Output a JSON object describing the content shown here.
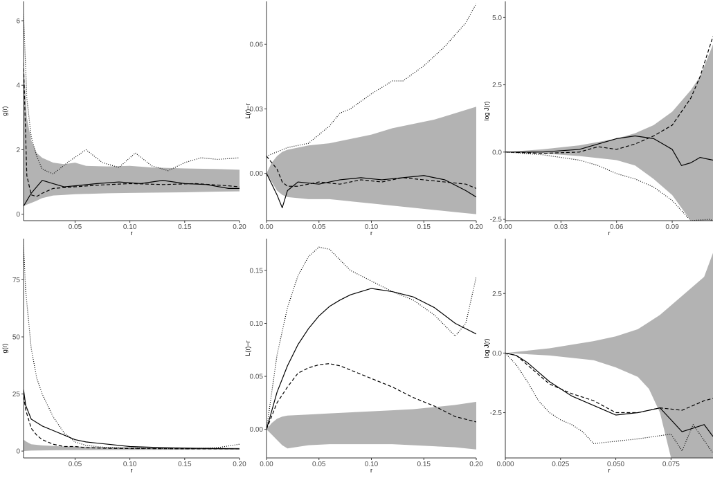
{
  "colors": {
    "envelope": "#b3b3b3",
    "line": "#000000",
    "axis": "#333333",
    "tick_text": "#4d4d4d"
  },
  "chart_data": [
    {
      "type": "line",
      "panel": "row1-col1",
      "xlabel": "r",
      "ylabel": "g(r)",
      "xlim": [
        0.003,
        0.2
      ],
      "ylim": [
        -0.2,
        6.6
      ],
      "xticks": [
        0.05,
        0.1,
        0.15,
        0.2
      ],
      "xtick_labels": [
        "0.05",
        "0.10",
        "0.15",
        "0.20"
      ],
      "yticks": [
        0,
        2,
        4,
        6
      ],
      "ytick_labels": [
        "0",
        "2",
        "4",
        "6"
      ],
      "envelope": {
        "x": [
          0.003,
          0.006,
          0.01,
          0.015,
          0.02,
          0.03,
          0.04,
          0.05,
          0.06,
          0.08,
          0.1,
          0.12,
          0.15,
          0.18,
          0.2
        ],
        "lower": [
          0.25,
          0.3,
          0.35,
          0.42,
          0.5,
          0.58,
          0.6,
          0.62,
          0.63,
          0.65,
          0.66,
          0.67,
          0.68,
          0.7,
          0.71
        ],
        "upper": [
          4.7,
          3.0,
          2.3,
          1.9,
          1.75,
          1.6,
          1.55,
          1.6,
          1.5,
          1.48,
          1.5,
          1.45,
          1.42,
          1.4,
          1.38
        ]
      },
      "series": [
        {
          "style": "solid",
          "x": [
            0.003,
            0.01,
            0.02,
            0.03,
            0.04,
            0.05,
            0.07,
            0.09,
            0.11,
            0.13,
            0.15,
            0.17,
            0.19,
            0.2
          ],
          "y": [
            0.25,
            0.65,
            1.05,
            0.95,
            0.85,
            0.88,
            0.95,
            1.0,
            0.95,
            1.05,
            0.95,
            0.92,
            0.8,
            0.8
          ]
        },
        {
          "style": "dashed",
          "x": [
            0.003,
            0.006,
            0.01,
            0.015,
            0.02,
            0.03,
            0.05,
            0.07,
            0.1,
            0.13,
            0.16,
            0.19,
            0.2
          ],
          "y": [
            4.7,
            1.2,
            0.6,
            0.55,
            0.65,
            0.8,
            0.85,
            0.9,
            0.95,
            0.92,
            0.95,
            0.88,
            0.85
          ]
        },
        {
          "style": "dotted",
          "x": [
            0.003,
            0.006,
            0.01,
            0.015,
            0.02,
            0.03,
            0.045,
            0.06,
            0.075,
            0.09,
            0.105,
            0.12,
            0.135,
            0.15,
            0.165,
            0.18,
            0.2
          ],
          "y": [
            6.2,
            3.6,
            2.4,
            1.8,
            1.4,
            1.25,
            1.65,
            2.0,
            1.6,
            1.45,
            1.9,
            1.5,
            1.35,
            1.6,
            1.75,
            1.7,
            1.75
          ]
        }
      ]
    },
    {
      "type": "line",
      "panel": "row1-col2",
      "xlabel": "r",
      "ylabel": "L(r)−r",
      "xlim": [
        0,
        0.2
      ],
      "ylim": [
        -0.022,
        0.08
      ],
      "xticks": [
        0,
        0.05,
        0.1,
        0.15,
        0.2
      ],
      "xtick_labels": [
        "0.00",
        "0.05",
        "0.10",
        "0.15",
        "0.20"
      ],
      "yticks": [
        0,
        0.03,
        0.06
      ],
      "ytick_labels": [
        "0.00",
        "0.03",
        "0.06"
      ],
      "envelope": {
        "x": [
          0,
          0.005,
          0.01,
          0.015,
          0.02,
          0.04,
          0.06,
          0.08,
          0.1,
          0.12,
          0.14,
          0.16,
          0.18,
          0.2
        ],
        "lower": [
          0,
          -0.004,
          -0.008,
          -0.01,
          -0.011,
          -0.012,
          -0.012,
          -0.013,
          -0.014,
          -0.015,
          -0.016,
          -0.017,
          -0.018,
          -0.019
        ],
        "upper": [
          0,
          0.005,
          0.008,
          0.01,
          0.011,
          0.013,
          0.014,
          0.016,
          0.018,
          0.021,
          0.023,
          0.025,
          0.028,
          0.031
        ]
      },
      "series": [
        {
          "style": "solid",
          "x": [
            0,
            0.005,
            0.01,
            0.015,
            0.02,
            0.03,
            0.05,
            0.07,
            0.09,
            0.11,
            0.13,
            0.15,
            0.17,
            0.19,
            0.2
          ],
          "y": [
            0.0,
            -0.005,
            -0.01,
            -0.016,
            -0.008,
            -0.004,
            -0.005,
            -0.003,
            -0.002,
            -0.003,
            -0.002,
            -0.001,
            -0.003,
            -0.008,
            -0.011
          ]
        },
        {
          "style": "dashed",
          "x": [
            0,
            0.005,
            0.01,
            0.015,
            0.02,
            0.03,
            0.05,
            0.07,
            0.09,
            0.11,
            0.13,
            0.15,
            0.17,
            0.19,
            0.2
          ],
          "y": [
            0.008,
            0.005,
            0.002,
            -0.004,
            -0.006,
            -0.006,
            -0.004,
            -0.005,
            -0.003,
            -0.004,
            -0.002,
            -0.003,
            -0.004,
            -0.005,
            -0.007
          ]
        },
        {
          "style": "dotted",
          "x": [
            0,
            0.01,
            0.02,
            0.04,
            0.06,
            0.07,
            0.08,
            0.1,
            0.12,
            0.13,
            0.15,
            0.17,
            0.19,
            0.2
          ],
          "y": [
            0.008,
            0.01,
            0.012,
            0.014,
            0.022,
            0.028,
            0.03,
            0.037,
            0.043,
            0.043,
            0.05,
            0.059,
            0.07,
            0.079
          ]
        }
      ]
    },
    {
      "type": "line",
      "panel": "row1-col3",
      "xlabel": "r",
      "ylabel": "log J(r)",
      "xlim": [
        0,
        0.112
      ],
      "ylim": [
        -2.55,
        5.6
      ],
      "xticks": [
        0,
        0.03,
        0.06,
        0.09
      ],
      "xtick_labels": [
        "0.00",
        "0.03",
        "0.06",
        "0.09"
      ],
      "yticks": [
        -2.5,
        0,
        2.5,
        5.0
      ],
      "ytick_labels": [
        "-2.5",
        "0.0",
        "2.5",
        "5.0"
      ],
      "envelope": {
        "x": [
          0,
          0.02,
          0.04,
          0.06,
          0.07,
          0.08,
          0.09,
          0.1,
          0.105,
          0.112
        ],
        "lower": [
          0,
          -0.05,
          -0.15,
          -0.3,
          -0.5,
          -1.0,
          -1.6,
          -2.55,
          -2.55,
          -2.55
        ],
        "upper": [
          0,
          0.1,
          0.25,
          0.5,
          0.7,
          1.0,
          1.5,
          2.3,
          2.8,
          4.0
        ]
      },
      "series": [
        {
          "style": "solid",
          "x": [
            0,
            0.02,
            0.04,
            0.05,
            0.06,
            0.07,
            0.08,
            0.085,
            0.09,
            0.095,
            0.1,
            0.105,
            0.112
          ],
          "y": [
            0,
            0.0,
            0.1,
            0.3,
            0.5,
            0.6,
            0.5,
            0.3,
            0.1,
            -0.5,
            -0.4,
            -0.2,
            -0.3
          ]
        },
        {
          "style": "dashed",
          "x": [
            0,
            0.02,
            0.04,
            0.05,
            0.06,
            0.07,
            0.08,
            0.09,
            0.1,
            0.105,
            0.112
          ],
          "y": [
            0,
            -0.05,
            0.0,
            0.2,
            0.1,
            0.3,
            0.6,
            1.0,
            2.0,
            2.8,
            4.3
          ]
        },
        {
          "style": "dotted",
          "x": [
            0,
            0.02,
            0.04,
            0.05,
            0.06,
            0.07,
            0.08,
            0.09,
            0.1,
            0.11,
            0.112
          ],
          "y": [
            0,
            -0.1,
            -0.3,
            -0.5,
            -0.8,
            -1.0,
            -1.3,
            -1.8,
            -2.55,
            -2.5,
            -2.55
          ]
        }
      ]
    },
    {
      "type": "line",
      "panel": "row2-col1",
      "xlabel": "r",
      "ylabel": "g(r)",
      "xlim": [
        0.003,
        0.2
      ],
      "ylim": [
        -3,
        93
      ],
      "xticks": [
        0.05,
        0.1,
        0.15,
        0.2
      ],
      "xtick_labels": [
        "0.05",
        "0.10",
        "0.15",
        "0.20"
      ],
      "yticks": [
        0,
        25,
        50,
        75
      ],
      "ytick_labels": [
        "0",
        "25",
        "50",
        "75"
      ],
      "envelope": {
        "x": [
          0.003,
          0.006,
          0.01,
          0.02,
          0.04,
          0.08,
          0.12,
          0.16,
          0.2
        ],
        "lower": [
          0,
          0.1,
          0.2,
          0.3,
          0.4,
          0.5,
          0.55,
          0.6,
          0.65
        ],
        "upper": [
          5.0,
          4.0,
          3.0,
          2.5,
          2.0,
          1.8,
          1.6,
          1.5,
          1.4
        ]
      },
      "series": [
        {
          "style": "solid",
          "x": [
            0.003,
            0.005,
            0.01,
            0.02,
            0.03,
            0.04,
            0.05,
            0.06,
            0.08,
            0.1,
            0.13,
            0.16,
            0.2
          ],
          "y": [
            27,
            20,
            14,
            11,
            9,
            7,
            5,
            4,
            3,
            2,
            1.5,
            1.2,
            1.0
          ]
        },
        {
          "style": "dashed",
          "x": [
            0.003,
            0.005,
            0.01,
            0.015,
            0.02,
            0.03,
            0.04,
            0.05,
            0.06,
            0.08,
            0.1,
            0.15,
            0.2
          ],
          "y": [
            24,
            18,
            10,
            7,
            5,
            3,
            2,
            2,
            1.5,
            1.2,
            1.1,
            1.0,
            1.0
          ]
        },
        {
          "style": "dotted",
          "x": [
            0.003,
            0.005,
            0.008,
            0.01,
            0.015,
            0.02,
            0.03,
            0.04,
            0.05,
            0.06,
            0.08,
            0.1,
            0.15,
            0.18,
            0.2
          ],
          "y": [
            90,
            70,
            55,
            45,
            32,
            25,
            15,
            8,
            4,
            2.5,
            1.5,
            1.2,
            1.0,
            1.5,
            3.0
          ]
        }
      ]
    },
    {
      "type": "line",
      "panel": "row2-col2",
      "xlabel": "r",
      "ylabel": "L(r)−r",
      "xlim": [
        0,
        0.2
      ],
      "ylim": [
        -0.027,
        0.18
      ],
      "xticks": [
        0,
        0.05,
        0.1,
        0.15,
        0.2
      ],
      "xtick_labels": [
        "0.00",
        "0.05",
        "0.10",
        "0.15",
        "0.20"
      ],
      "yticks": [
        0,
        0.05,
        0.1,
        0.15
      ],
      "ytick_labels": [
        "0.00",
        "0.05",
        "0.10",
        "0.15"
      ],
      "envelope": {
        "x": [
          0,
          0.005,
          0.01,
          0.015,
          0.02,
          0.04,
          0.06,
          0.08,
          0.1,
          0.12,
          0.14,
          0.16,
          0.18,
          0.2
        ],
        "lower": [
          0,
          -0.005,
          -0.01,
          -0.015,
          -0.018,
          -0.015,
          -0.014,
          -0.014,
          -0.014,
          -0.014,
          -0.015,
          -0.016,
          -0.017,
          -0.019
        ],
        "upper": [
          0,
          0.006,
          0.01,
          0.012,
          0.013,
          0.014,
          0.015,
          0.016,
          0.017,
          0.018,
          0.019,
          0.021,
          0.023,
          0.026
        ]
      },
      "series": [
        {
          "style": "solid",
          "x": [
            0,
            0.01,
            0.02,
            0.03,
            0.04,
            0.05,
            0.06,
            0.07,
            0.08,
            0.1,
            0.12,
            0.14,
            0.16,
            0.18,
            0.2
          ],
          "y": [
            0,
            0.035,
            0.06,
            0.08,
            0.095,
            0.107,
            0.116,
            0.122,
            0.127,
            0.133,
            0.13,
            0.125,
            0.115,
            0.1,
            0.09
          ]
        },
        {
          "style": "dashed",
          "x": [
            0,
            0.01,
            0.02,
            0.03,
            0.04,
            0.05,
            0.06,
            0.07,
            0.08,
            0.1,
            0.12,
            0.14,
            0.16,
            0.18,
            0.2
          ],
          "y": [
            0,
            0.025,
            0.04,
            0.053,
            0.058,
            0.061,
            0.062,
            0.06,
            0.056,
            0.048,
            0.04,
            0.03,
            0.022,
            0.012,
            0.007
          ]
        },
        {
          "style": "dotted",
          "x": [
            0,
            0.01,
            0.02,
            0.03,
            0.04,
            0.05,
            0.06,
            0.07,
            0.08,
            0.1,
            0.12,
            0.14,
            0.16,
            0.18,
            0.19,
            0.2
          ],
          "y": [
            0,
            0.07,
            0.115,
            0.145,
            0.163,
            0.172,
            0.17,
            0.16,
            0.15,
            0.14,
            0.13,
            0.122,
            0.108,
            0.088,
            0.1,
            0.144
          ]
        }
      ]
    },
    {
      "type": "line",
      "panel": "row2-col3",
      "xlabel": "r",
      "ylabel": "log J(r)",
      "xlim": [
        0,
        0.094
      ],
      "ylim": [
        -4.4,
        4.8
      ],
      "xticks": [
        0,
        0.025,
        0.05,
        0.075
      ],
      "xtick_labels": [
        "0.000",
        "0.025",
        "0.050",
        "0.075"
      ],
      "yticks": [
        -2.5,
        0,
        2.5
      ],
      "ytick_labels": [
        "-2.5",
        "0.0",
        "2.5"
      ],
      "envelope": {
        "x": [
          0,
          0.02,
          0.04,
          0.05,
          0.06,
          0.065,
          0.07,
          0.075,
          0.08,
          0.09,
          0.094
        ],
        "lower": [
          0,
          -0.1,
          -0.3,
          -0.6,
          -1.0,
          -1.5,
          -2.5,
          -4.4,
          -4.4,
          -4.4,
          -4.4
        ],
        "upper": [
          0,
          0.2,
          0.5,
          0.7,
          1.0,
          1.3,
          1.6,
          2.0,
          2.4,
          3.2,
          4.2
        ]
      },
      "series": [
        {
          "style": "solid",
          "x": [
            0,
            0.005,
            0.01,
            0.02,
            0.03,
            0.04,
            0.05,
            0.06,
            0.07,
            0.075,
            0.08,
            0.09,
            0.094
          ],
          "y": [
            0,
            -0.1,
            -0.4,
            -1.2,
            -1.8,
            -2.2,
            -2.6,
            -2.5,
            -2.3,
            -2.8,
            -3.3,
            -3.0,
            -3.5
          ]
        },
        {
          "style": "dashed",
          "x": [
            0,
            0.005,
            0.01,
            0.02,
            0.03,
            0.04,
            0.05,
            0.06,
            0.07,
            0.08,
            0.09,
            0.094
          ],
          "y": [
            0,
            -0.1,
            -0.5,
            -1.3,
            -1.7,
            -2.0,
            -2.5,
            -2.5,
            -2.3,
            -2.4,
            -2.0,
            -1.9
          ]
        },
        {
          "style": "dotted",
          "x": [
            0,
            0.005,
            0.01,
            0.015,
            0.02,
            0.025,
            0.03,
            0.035,
            0.04,
            0.06,
            0.075,
            0.08,
            0.085,
            0.094
          ],
          "y": [
            0,
            -0.5,
            -1.2,
            -2.0,
            -2.5,
            -2.8,
            -3.0,
            -3.3,
            -3.8,
            -3.6,
            -3.4,
            -4.1,
            -3.0,
            -4.2
          ]
        }
      ]
    }
  ]
}
